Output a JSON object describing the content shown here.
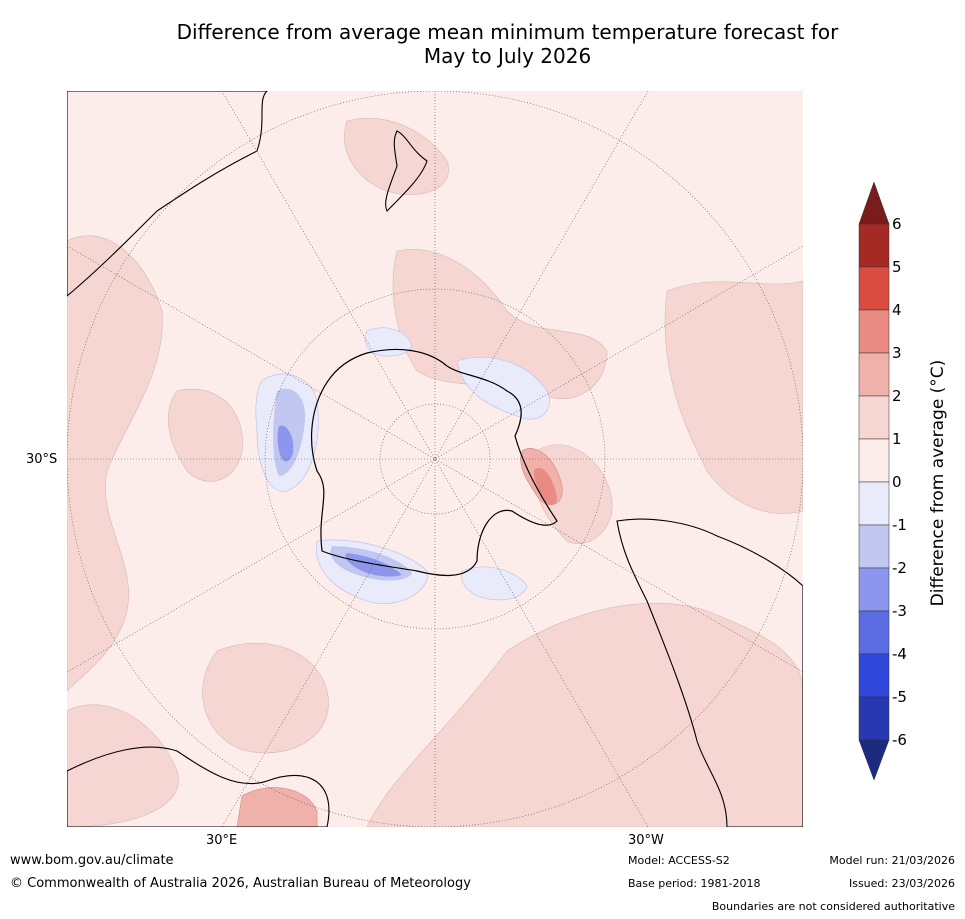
{
  "title": {
    "line1": "Difference from average mean minimum temperature forecast for",
    "line2": "May to July 2026"
  },
  "map": {
    "lat_label": "30°S",
    "lon_labels": {
      "east": "30°E",
      "west": "30°W"
    }
  },
  "colorbar": {
    "label": "Difference from average (°C)",
    "ticks": [
      "6",
      "5",
      "4",
      "3",
      "2",
      "1",
      "0",
      "-1",
      "-2",
      "-3",
      "-4",
      "-5",
      "-6"
    ],
    "colors": {
      "above6": "#7a1c1c",
      "5to6": "#a62a24",
      "4to5": "#d84c42",
      "3to4": "#e98a83",
      "2to3": "#efb1aa",
      "1to2": "#f5d6d2",
      "0to1": "#fcecea",
      "m1to0": "#e9ebfa",
      "m2tom1": "#c2c7f2",
      "m3tom2": "#8c96ec",
      "m4tom3": "#5b6be2",
      "m5tom4": "#3148dc",
      "m6tom5": "#2838b0",
      "below_m6": "#1c2a80"
    }
  },
  "footer": {
    "website": "www.bom.gov.au/climate",
    "copyright": "© Commonwealth of Australia 2026, Australian Bureau of Meteorology",
    "model": "Model: ACCESS-S2",
    "base_period": "Base period: 1981-2018",
    "model_run": "Model run: 21/03/2026",
    "issued": "Issued: 23/03/2026",
    "disclaimer": "Boundaries are not considered authoritative"
  }
}
